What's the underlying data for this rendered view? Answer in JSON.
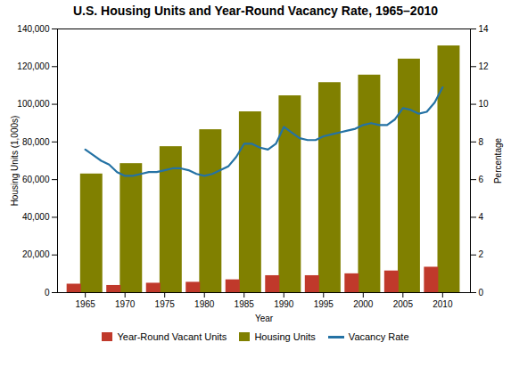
{
  "chart_data": {
    "type": "bar",
    "title": "U.S. Housing Units and Year-Round Vacancy Rate, 1965–2010",
    "xlabel": "Year",
    "ylabel": "Housing Units (1,000s)",
    "y2label": "Percentage",
    "x": [
      1965,
      1970,
      1975,
      1980,
      1985,
      1990,
      1995,
      2000,
      2005,
      2010
    ],
    "xlim": [
      1961.5,
      2013.5
    ],
    "xticks": [
      1965,
      1970,
      1975,
      1980,
      1985,
      1990,
      1995,
      2000,
      2005,
      2010
    ],
    "ylim": [
      0,
      140000
    ],
    "yticks": [
      0,
      {
        "value": 20000,
        "label": "20,000"
      },
      {
        "value": 40000,
        "label": "40,000"
      },
      {
        "value": 60000,
        "label": "60,000"
      },
      {
        "value": 80000,
        "label": "80,000"
      },
      {
        "value": 100000,
        "label": "100,000"
      },
      {
        "value": 120000,
        "label": "120,000"
      },
      {
        "value": 140000,
        "label": "140,000"
      }
    ],
    "y2lim": [
      0,
      14
    ],
    "y2ticks": [
      0,
      2,
      4,
      6,
      8,
      10,
      12,
      14
    ],
    "grid": false,
    "legend": "bottom",
    "series": [
      {
        "name": "Year-Round Vacant Units",
        "type": "bar",
        "color": "#c0392b",
        "values": [
          4500,
          3800,
          5000,
          5500,
          6800,
          9000,
          9000,
          10000,
          11500,
          13500
        ]
      },
      {
        "name": "Housing Units",
        "type": "bar",
        "color": "#808000",
        "values": [
          63000,
          68500,
          77500,
          86500,
          96000,
          104500,
          111500,
          115500,
          124000,
          131000
        ]
      },
      {
        "name": "Vacancy Rate",
        "type": "line",
        "axis": "y2",
        "color": "#2472a4",
        "x": [
          1965,
          1966,
          1967,
          1968,
          1969,
          1970,
          1971,
          1972,
          1973,
          1974,
          1975,
          1976,
          1977,
          1978,
          1979,
          1980,
          1981,
          1982,
          1983,
          1984,
          1985,
          1986,
          1987,
          1988,
          1989,
          1990,
          1991,
          1992,
          1993,
          1994,
          1995,
          1996,
          1997,
          1998,
          1999,
          2000,
          2001,
          2002,
          2003,
          2004,
          2005,
          2006,
          2007,
          2008,
          2009,
          2010
        ],
        "values": [
          7.6,
          7.3,
          7.0,
          6.8,
          6.4,
          6.2,
          6.2,
          6.3,
          6.4,
          6.4,
          6.5,
          6.6,
          6.6,
          6.5,
          6.3,
          6.2,
          6.3,
          6.5,
          6.7,
          7.2,
          7.9,
          7.9,
          7.7,
          7.6,
          7.9,
          8.8,
          8.5,
          8.2,
          8.1,
          8.1,
          8.3,
          8.4,
          8.5,
          8.6,
          8.7,
          8.9,
          9.0,
          8.9,
          8.9,
          9.2,
          9.8,
          9.7,
          9.5,
          9.6,
          10.1,
          10.9
        ]
      }
    ]
  }
}
